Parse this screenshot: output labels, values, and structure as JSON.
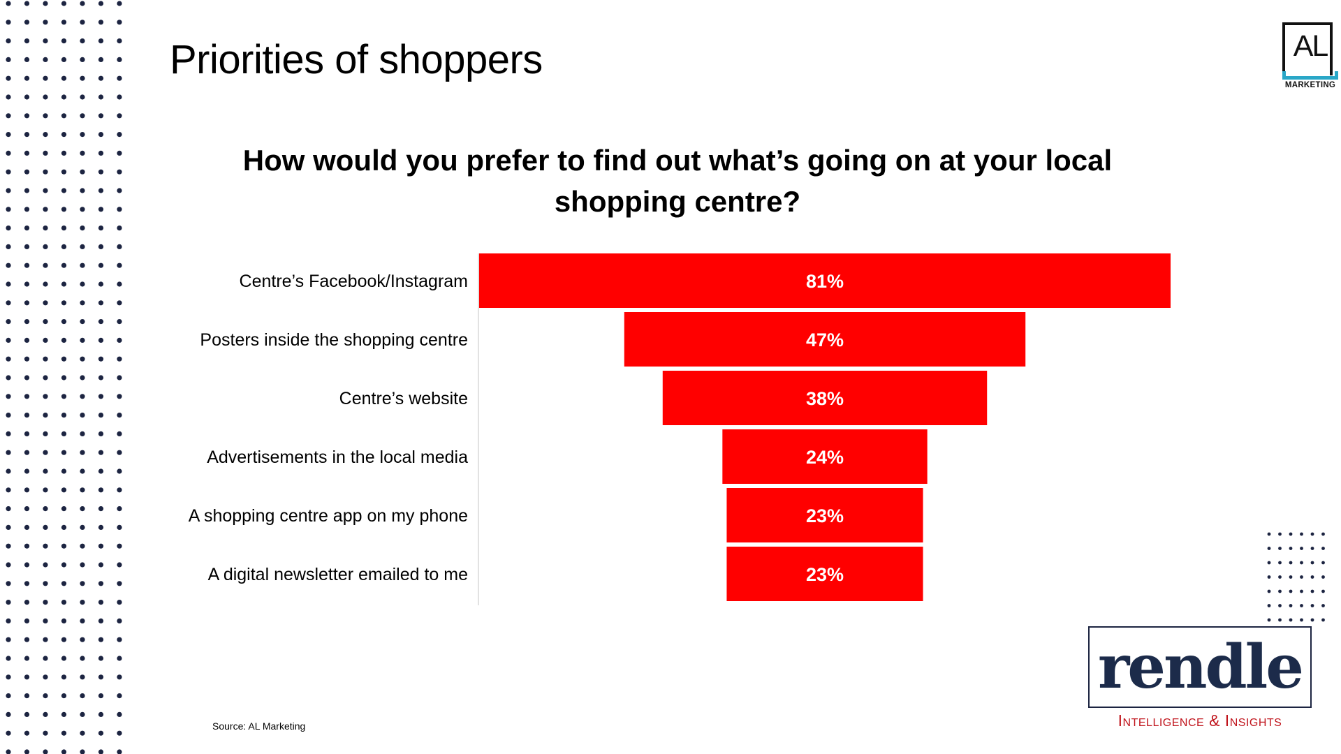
{
  "slide": {
    "title": "Priorities of shoppers",
    "source": "Source: AL Marketing"
  },
  "logos": {
    "al_mark": "AL",
    "al_sub": "MARKETING",
    "rendle_word": "rendle",
    "rendle_tag": "Intelligence & Insights"
  },
  "colors": {
    "bar": "#ff0000",
    "dots": "#1c2441",
    "al_accent": "#2aa7c7",
    "rendle_red": "#c0141c"
  },
  "chart_data": {
    "type": "bar",
    "orientation": "horizontal-centered (funnel)",
    "title": "How would you prefer to find out what’s going on at your local shopping centre?",
    "categories": [
      "Centre’s Facebook/Instagram",
      "Posters inside the shopping centre",
      "Centre’s website",
      "Advertisements in the local media",
      "A shopping centre app on my phone",
      "A digital newsletter emailed to me"
    ],
    "values": [
      81,
      47,
      38,
      24,
      23,
      23
    ],
    "value_labels": [
      "81%",
      "47%",
      "38%",
      "24%",
      "23%",
      "23%"
    ],
    "xlim": [
      0,
      81
    ],
    "legend": "none",
    "grid": false
  }
}
